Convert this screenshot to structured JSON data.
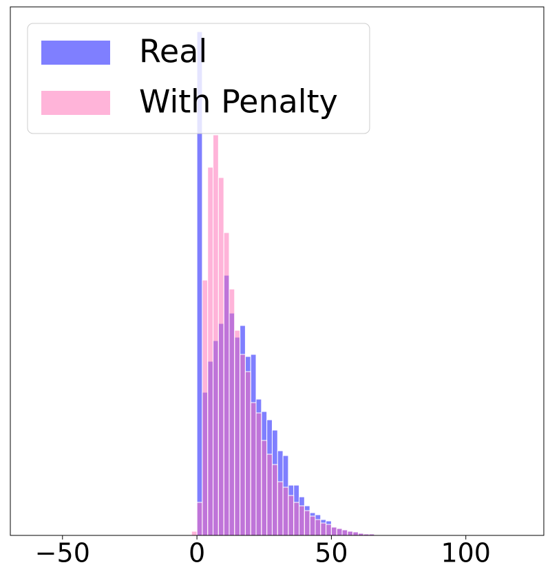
{
  "chart_data": {
    "type": "histogram",
    "bins": [
      -2,
      0,
      2,
      4,
      6,
      8,
      10,
      12,
      14,
      16,
      18,
      20,
      22,
      24,
      26,
      28,
      30,
      32,
      34,
      36,
      38,
      40,
      42,
      44,
      46,
      48,
      50,
      52,
      54,
      56,
      58,
      60,
      62,
      64,
      66,
      68,
      70,
      72,
      74,
      76,
      78,
      80
    ],
    "series": [
      {
        "name": "Real",
        "color": "#0000ff",
        "values": [
          0,
          732,
          208,
          253,
          283,
          308,
          378,
          323,
          288,
          305,
          260,
          263,
          198,
          180,
          168,
          153,
          123,
          116,
          73,
          73,
          56,
          43,
          33,
          30,
          23,
          21,
          13,
          10,
          8,
          6,
          5,
          4,
          3,
          3,
          2,
          2,
          1,
          1,
          1,
          1,
          1
        ]
      },
      {
        "name": "With Penalty",
        "color": "#ff69b4",
        "values": [
          6,
          48,
          371,
          535,
          582,
          520,
          440,
          358,
          298,
          263,
          238,
          193,
          178,
          138,
          118,
          103,
          78,
          70,
          58,
          48,
          43,
          36,
          28,
          23,
          18,
          16,
          12,
          10,
          8,
          6,
          5,
          3,
          2,
          2,
          1,
          1,
          1,
          1,
          0,
          0,
          0
        ]
      }
    ],
    "xlim": [
      -69.4,
      129
    ],
    "ylim": [
      0,
      768
    ],
    "xticks": [
      {
        "value": -50,
        "label": "−50"
      },
      0,
      50,
      100
    ],
    "legend": "upper left"
  }
}
